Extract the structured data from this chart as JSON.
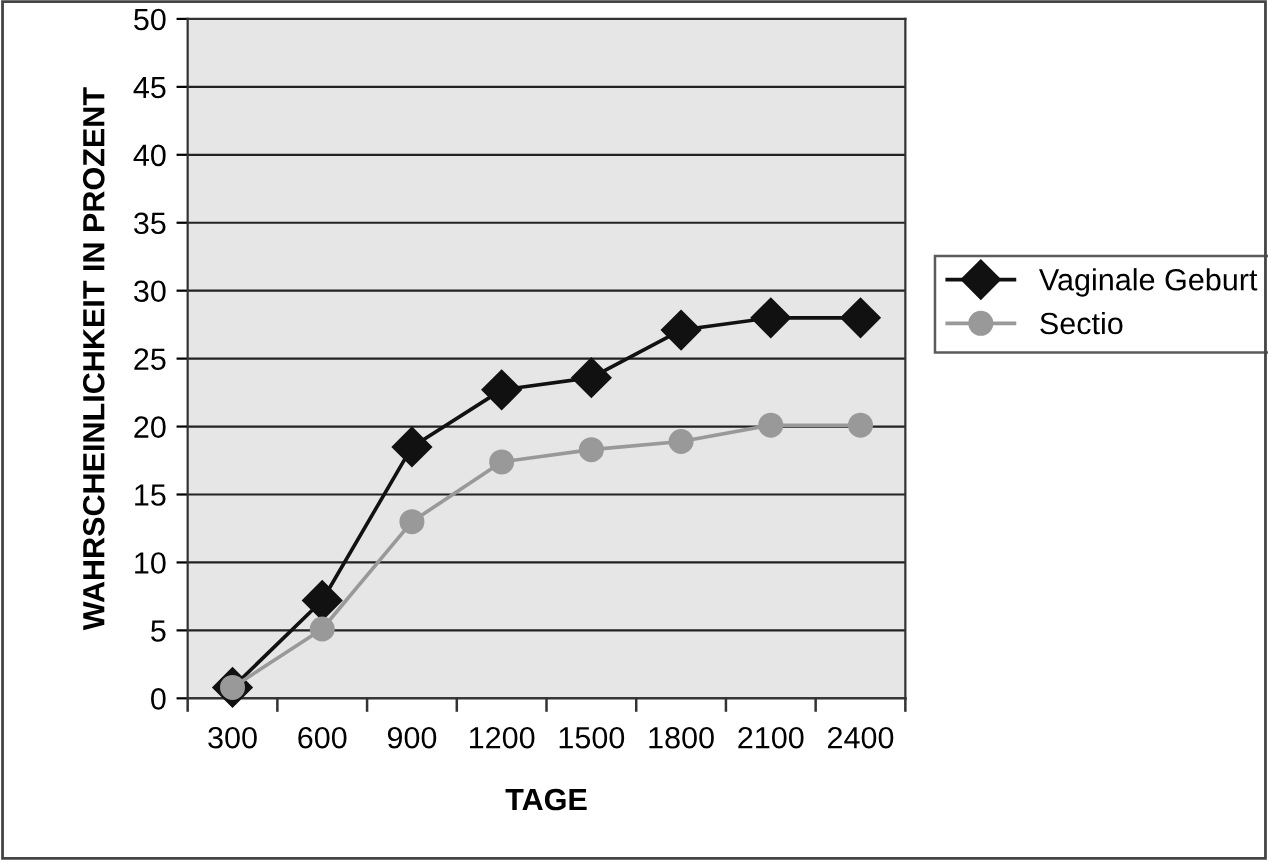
{
  "chart_data": {
    "type": "line",
    "xlabel": "TAGE",
    "ylabel": "WAHRSCHEINLICHKEIT IN PROZENT",
    "categories": [
      "300",
      "600",
      "900",
      "1200",
      "1500",
      "1800",
      "2100",
      "2400"
    ],
    "series": [
      {
        "name": "Vaginale Geburt",
        "color": "#111111",
        "marker": "diamond",
        "values": [
          0.8,
          7.2,
          18.5,
          22.7,
          23.6,
          27.1,
          28.0,
          28.0
        ]
      },
      {
        "name": "Sectio",
        "color": "#999999",
        "marker": "circle",
        "values": [
          0.8,
          5.1,
          13.0,
          17.4,
          18.3,
          18.9,
          20.1,
          20.1
        ]
      }
    ],
    "ylim": [
      0,
      50
    ],
    "yticks": [
      0,
      5,
      10,
      15,
      20,
      25,
      30,
      35,
      40,
      45,
      50
    ],
    "grid": "y",
    "legend": "right",
    "line_style": "solid"
  }
}
